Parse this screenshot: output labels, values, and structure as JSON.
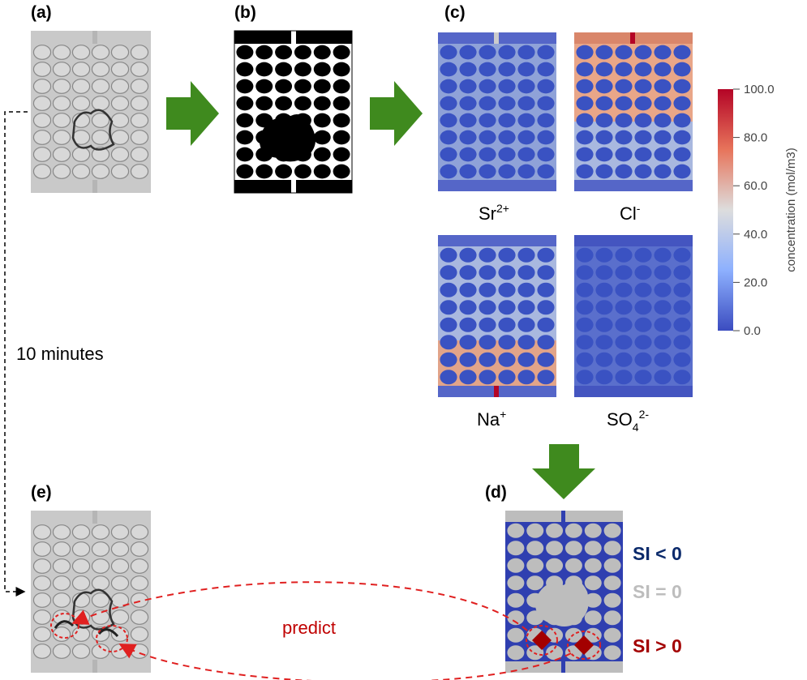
{
  "panels": {
    "a": {
      "label": "(a)"
    },
    "b": {
      "label": "(b)"
    },
    "c": {
      "label": "(c)"
    },
    "d": {
      "label": "(d)"
    },
    "e": {
      "label": "(e)"
    }
  },
  "ions": {
    "sr": {
      "base": "Sr",
      "sup": "2+"
    },
    "cl": {
      "base": "Cl",
      "sup": "-"
    },
    "na": {
      "base": "Na",
      "sup": "+"
    },
    "so4": {
      "base": "SO",
      "sub": "4",
      "sup": "2-"
    }
  },
  "colorbar": {
    "title": "concentration (mol/m3)",
    "ticks": [
      "100.0",
      "80.0",
      "60.0",
      "40.0",
      "20.0",
      "0.0"
    ],
    "tick_values": [
      100,
      80,
      60,
      40,
      20,
      0
    ],
    "range": [
      0,
      100
    ],
    "colors": [
      "#3b4cc0",
      "#dddddd",
      "#b40426"
    ]
  },
  "time_note": "10 minutes",
  "predict_label": "predict",
  "saturation": {
    "below": "SI < 0",
    "equal": "SI = 0",
    "above": "SI > 0",
    "below_color": "#0b2a6b",
    "equal_color": "#bdbdbd",
    "above_color": "#a30000"
  },
  "arrow_color": "#3f8a1e",
  "dashed_color": "#e02020"
}
